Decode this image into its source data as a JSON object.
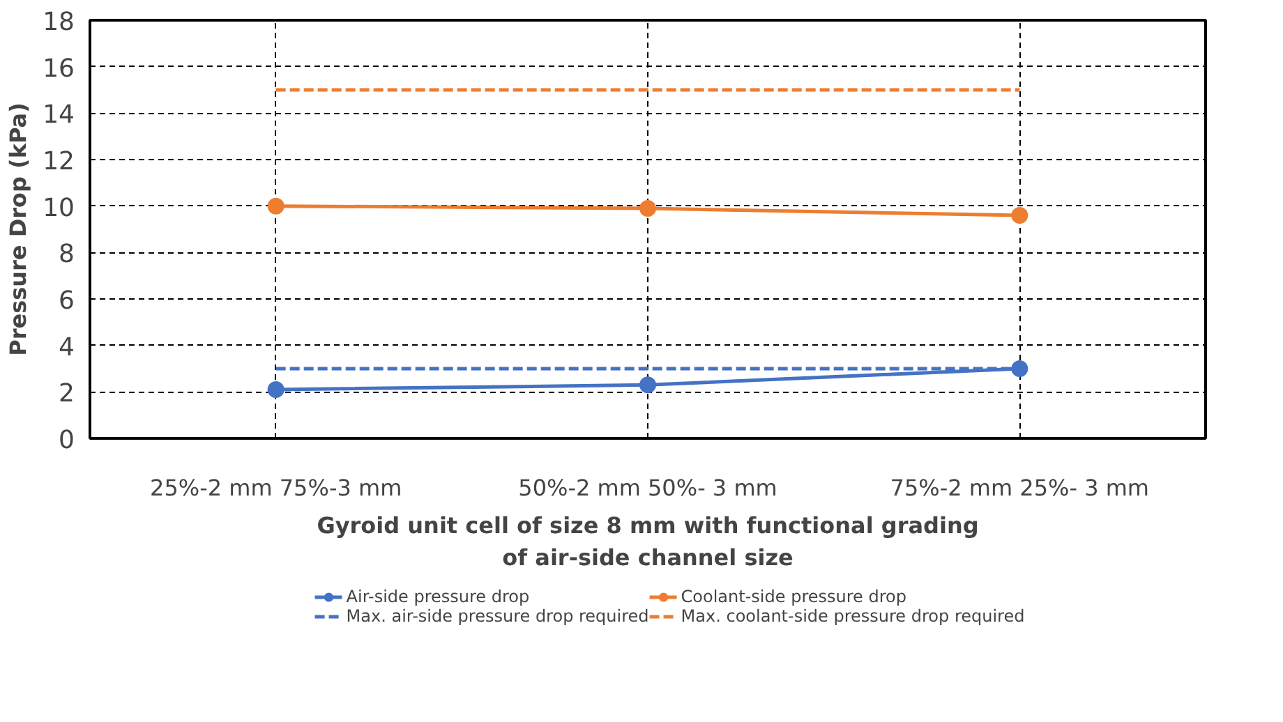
{
  "chart_data": {
    "type": "line",
    "xlabel": "Gyroid unit cell of size 8 mm with functional grading\nof air-side channel size",
    "ylabel": "Pressure Drop (kPa)",
    "categories": [
      "25%-2 mm 75%-3 mm",
      "50%-2 mm 50%- 3 mm",
      "75%-2 mm 25%- 3 mm"
    ],
    "series": [
      {
        "name": "Air-side pressure drop",
        "color": "#4472c4",
        "values": [
          2.1,
          2.3,
          3.0
        ],
        "marker": "circle",
        "line_style": "solid"
      },
      {
        "name": "Coolant-side pressure drop",
        "color": "#ed7d31",
        "values": [
          10.0,
          9.9,
          9.6
        ],
        "marker": "circle",
        "line_style": "solid"
      },
      {
        "name": "Max. air-side pressure drop required",
        "color": "#4472c4",
        "values": [
          3,
          3,
          3
        ],
        "marker": "none",
        "line_style": "dashed"
      },
      {
        "name": "Max. coolant-side pressure drop required",
        "color": "#ed7d31",
        "values": [
          15,
          15,
          15
        ],
        "marker": "none",
        "line_style": "dashed"
      }
    ],
    "ylim": [
      0,
      18
    ],
    "yticks": [
      0,
      2,
      4,
      6,
      8,
      10,
      12,
      14,
      16,
      18
    ],
    "grid": true,
    "legend": "bottom"
  }
}
